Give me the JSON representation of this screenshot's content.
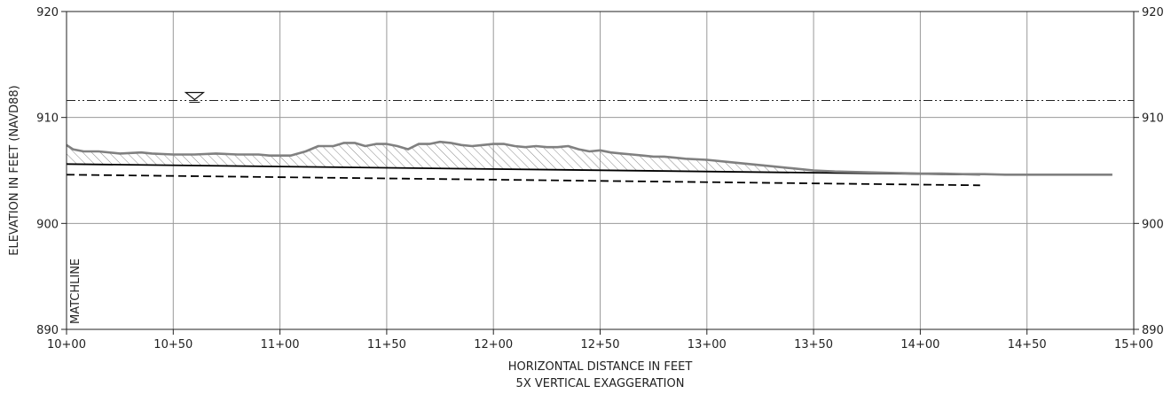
{
  "chart_data": {
    "type": "line",
    "title": "",
    "xlabel": "HORIZONTAL DISTANCE IN FEET",
    "xlabel2": "5X VERTICAL EXAGGERATION",
    "ylabel": "ELEVATION IN FEET (NAVD88)",
    "xlim": [
      1000,
      1500
    ],
    "ylim": [
      890,
      920
    ],
    "grid": true,
    "x_ticks": [
      1000,
      1050,
      1100,
      1150,
      1200,
      1250,
      1300,
      1350,
      1400,
      1450,
      1500
    ],
    "x_tick_labels": [
      "10+00",
      "10+50",
      "11+00",
      "11+50",
      "12+00",
      "12+50",
      "13+00",
      "13+50",
      "14+00",
      "14+50",
      "15+00"
    ],
    "y_ticks": [
      890,
      900,
      910,
      920
    ],
    "y_tick_labels": [
      "890",
      "900",
      "910",
      "920"
    ],
    "annotations": {
      "matchline": "MATCHLINE"
    },
    "water_surface": {
      "elevation": 911.6,
      "symbol_station": 1060
    },
    "series": [
      {
        "style": "ground",
        "color": "#808080",
        "x": [
          1000,
          1003,
          1008,
          1015,
          1025,
          1035,
          1040,
          1050,
          1060,
          1070,
          1080,
          1090,
          1095,
          1100,
          1105,
          1112,
          1118,
          1125,
          1130,
          1135,
          1140,
          1145,
          1150,
          1155,
          1160,
          1165,
          1170,
          1175,
          1180,
          1185,
          1190,
          1195,
          1200,
          1205,
          1210,
          1215,
          1220,
          1225,
          1230,
          1235,
          1240,
          1245,
          1250,
          1255,
          1260,
          1265,
          1270,
          1275,
          1280,
          1285,
          1290,
          1300,
          1310,
          1320,
          1330,
          1340,
          1350,
          1360,
          1370,
          1380,
          1390,
          1400,
          1410,
          1420,
          1430,
          1440,
          1450,
          1460,
          1470,
          1480,
          1490
        ],
        "y": [
          907.4,
          907.0,
          906.8,
          906.8,
          906.6,
          906.7,
          906.6,
          906.5,
          906.5,
          906.6,
          906.5,
          906.5,
          906.4,
          906.4,
          906.4,
          906.8,
          907.3,
          907.3,
          907.6,
          907.6,
          907.3,
          907.5,
          907.5,
          907.3,
          907.0,
          907.5,
          907.5,
          907.7,
          907.6,
          907.4,
          907.3,
          907.4,
          907.5,
          907.5,
          907.3,
          907.2,
          907.3,
          907.2,
          907.2,
          907.3,
          907.0,
          906.8,
          906.9,
          906.7,
          906.6,
          906.5,
          906.4,
          906.3,
          906.3,
          906.2,
          906.1,
          906.0,
          905.8,
          905.6,
          905.4,
          905.2,
          905.0,
          904.9,
          904.85,
          904.8,
          904.75,
          904.7,
          904.7,
          904.65,
          904.65,
          904.6,
          904.6,
          904.6,
          904.6,
          904.6,
          904.6
        ]
      },
      {
        "style": "design",
        "color": "#000000",
        "x": [
          1000,
          1428
        ],
        "y": [
          905.6,
          904.6
        ]
      },
      {
        "style": "dashed",
        "color": "#000000",
        "x": [
          1000,
          1428
        ],
        "y": [
          904.6,
          903.6
        ]
      }
    ]
  }
}
